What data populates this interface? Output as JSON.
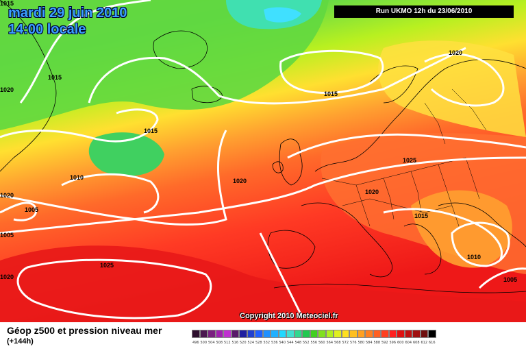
{
  "title": {
    "date": "mardi 29 juin 2010",
    "time": "14:00 locale"
  },
  "run_info": "Run UKMO 12h du 23/06/2010",
  "copyright": "Copyright 2010 Meteociel.fr",
  "footer": {
    "title": "Géop z500 et pression niveau mer",
    "subtitle": "(+144h)"
  },
  "isobar_labels": [
    "1015",
    "1020",
    "1015",
    "1015",
    "1020",
    "1020",
    "1010",
    "1005",
    "1015",
    "1025",
    "1020",
    "1005",
    "1025",
    "1020",
    "1015",
    "1010",
    "1005",
    "1020"
  ],
  "scale": {
    "labels": [
      "496",
      "500",
      "504",
      "508",
      "512",
      "516",
      "520",
      "524",
      "528",
      "532",
      "536",
      "540",
      "544",
      "548",
      "552",
      "556",
      "560",
      "564",
      "568",
      "572",
      "576",
      "580",
      "584",
      "588",
      "592",
      "596",
      "600",
      "604",
      "608",
      "612",
      "616"
    ],
    "colors": [
      "#2d0f2d",
      "#4b1850",
      "#7a2080",
      "#a020b0",
      "#c030d0",
      "#5a1a6a",
      "#2020a0",
      "#2040d0",
      "#2060ff",
      "#2090ff",
      "#20b0ff",
      "#20d8ff",
      "#40e0d0",
      "#30d890",
      "#20c850",
      "#40d020",
      "#80e020",
      "#b0f020",
      "#e0f020",
      "#ffe020",
      "#ffc020",
      "#ffa020",
      "#ff8020",
      "#ff6020",
      "#ff4020",
      "#ff2020",
      "#e01010",
      "#c01010",
      "#a01010",
      "#701010",
      "#000000"
    ]
  }
}
